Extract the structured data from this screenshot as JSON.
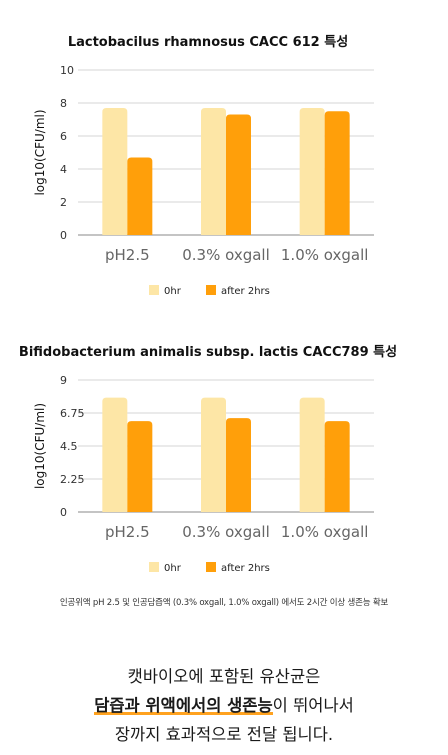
{
  "chart_data": [
    {
      "type": "bar",
      "title": "Lactobacilus rhamnosus CACC 612 특성",
      "ylabel": "log10(CFU/ml)",
      "xlabel": "",
      "categories": [
        "pH2.5",
        "0.3% oxgall",
        "1.0% oxgall"
      ],
      "series": [
        {
          "name": "0hr",
          "values": [
            7.7,
            7.7,
            7.7
          ],
          "color": "#fde6a6"
        },
        {
          "name": "after 2hrs",
          "values": [
            4.7,
            7.3,
            7.5
          ],
          "color": "#ff9f0a"
        }
      ],
      "ylim": [
        0,
        10
      ],
      "yticks": [
        "0",
        "2",
        "4",
        "6",
        "8",
        "10"
      ],
      "grid": true,
      "legend": "bottom"
    },
    {
      "type": "bar",
      "title": "Bifidobacterium animalis subsp. lactis CACC789 특성",
      "ylabel": "log10(CFU/ml)",
      "xlabel": "",
      "categories": [
        "pH2.5",
        "0.3% oxgall",
        "1.0% oxgall"
      ],
      "series": [
        {
          "name": "0hr",
          "values": [
            7.8,
            7.8,
            7.8
          ],
          "color": "#fde6a6"
        },
        {
          "name": "after 2hrs",
          "values": [
            6.2,
            6.4,
            6.2
          ],
          "color": "#ff9f0a"
        }
      ],
      "ylim": [
        0,
        9
      ],
      "yticks": [
        "0",
        "2.25",
        "4.5",
        "6.75",
        "9"
      ],
      "grid": true,
      "legend": "bottom"
    }
  ],
  "footnote": "인공위액 pH 2.5 및 인공담즙액 (0.3% oxgall, 1.0% oxgall) 에서도 2시간 이상 생존능 확보",
  "tagline": {
    "line1": "캣바이오에 포함된 유산균은",
    "line2_highlight": "담즙과 위액에서의 생존능",
    "line2_rest": "이 뛰어나서",
    "line3": "장까지 효과적으로 전달 됩니다."
  },
  "colors": {
    "light_bar": "#fde6a6",
    "dark_bar": "#ff9f0a",
    "highlight_underline": "#ffa21f"
  }
}
